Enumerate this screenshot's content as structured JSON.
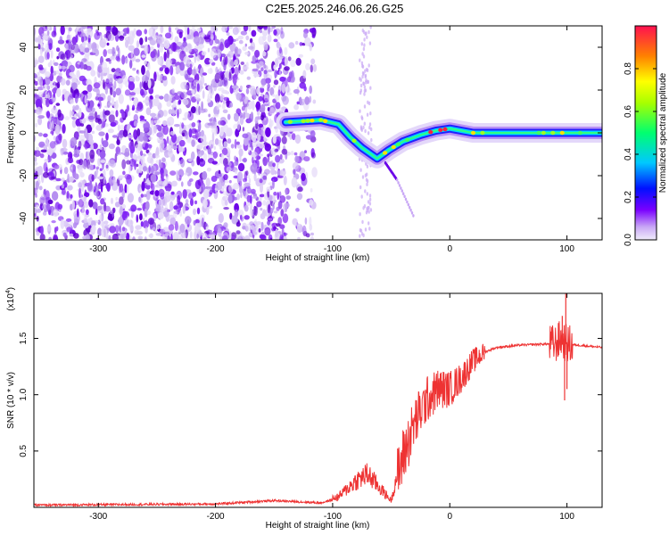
{
  "title": "C2E5.2025.246.06.26.G25",
  "chart_data": [
    {
      "type": "heatmap",
      "xlabel": "Height of straight line (km)",
      "ylabel": "Frequency (Hz)",
      "xlim": [
        -355,
        130
      ],
      "ylim": [
        -50,
        50
      ],
      "x_ticks": [
        -300,
        -200,
        -100,
        0,
        100
      ],
      "y_ticks": [
        -40,
        -20,
        0,
        20,
        40
      ],
      "colorbar": {
        "label": "Normalized spectral amplitude",
        "range": [
          0,
          1
        ],
        "ticks": [
          0,
          0.2,
          0.4,
          0.6,
          0.8
        ],
        "tick_labels": [
          "0.0",
          "0.2",
          "0.4",
          "0.6",
          "0.8"
        ],
        "colormap": [
          "#e8e0f8",
          "#7a00ff",
          "#0000ff",
          "#00c8ff",
          "#00ff60",
          "#ffff00",
          "#ff8000",
          "#ff0040"
        ]
      },
      "noise_region_x": [
        -355,
        -115
      ],
      "track": [
        {
          "x": -140,
          "f": 5
        },
        {
          "x": -110,
          "f": 6
        },
        {
          "x": -95,
          "f": 4
        },
        {
          "x": -85,
          "f": -2
        },
        {
          "x": -75,
          "f": -7
        },
        {
          "x": -62,
          "f": -12
        },
        {
          "x": -52,
          "f": -8
        },
        {
          "x": -40,
          "f": -4
        },
        {
          "x": -25,
          "f": -1
        },
        {
          "x": -12,
          "f": 1
        },
        {
          "x": 0,
          "f": 2
        },
        {
          "x": 20,
          "f": 0
        },
        {
          "x": 60,
          "f": 0
        },
        {
          "x": 100,
          "f": 0
        },
        {
          "x": 130,
          "f": 0
        }
      ],
      "secondary_trace": [
        {
          "x": -55,
          "f": -14
        },
        {
          "x": -45,
          "f": -22
        },
        {
          "x": -30,
          "f": -40
        }
      ]
    },
    {
      "type": "line",
      "xlabel": "Height of straight line (km)",
      "ylabel": "SNR (10 * v/v)",
      "exponent_label": "(x10",
      "exponent_sup": "4",
      "exponent_close": ")",
      "xlim": [
        -355,
        130
      ],
      "ylim": [
        0,
        1.9
      ],
      "x_ticks": [
        -300,
        -200,
        -100,
        0,
        100
      ],
      "y_ticks": [
        0.5,
        1.0,
        1.5
      ],
      "y_tick_labels": [
        "0.5",
        "1.0",
        "1.5"
      ],
      "color": "#ee3333",
      "envelope": [
        {
          "x": -355,
          "y": 0.02
        },
        {
          "x": -200,
          "y": 0.03
        },
        {
          "x": -150,
          "y": 0.06
        },
        {
          "x": -110,
          "y": 0.04
        },
        {
          "x": -95,
          "y": 0.08
        },
        {
          "x": -80,
          "y": 0.2
        },
        {
          "x": -70,
          "y": 0.25
        },
        {
          "x": -60,
          "y": 0.15
        },
        {
          "x": -50,
          "y": 0.05
        },
        {
          "x": -40,
          "y": 0.45
        },
        {
          "x": -30,
          "y": 0.75
        },
        {
          "x": -20,
          "y": 0.95
        },
        {
          "x": -10,
          "y": 1.05
        },
        {
          "x": 0,
          "y": 1.05
        },
        {
          "x": 10,
          "y": 1.15
        },
        {
          "x": 20,
          "y": 1.3
        },
        {
          "x": 30,
          "y": 1.38
        },
        {
          "x": 40,
          "y": 1.42
        },
        {
          "x": 60,
          "y": 1.44
        },
        {
          "x": 80,
          "y": 1.45
        },
        {
          "x": 90,
          "y": 1.45
        },
        {
          "x": 95,
          "y": 1.5
        },
        {
          "x": 100,
          "y": 1.45
        },
        {
          "x": 130,
          "y": 1.42
        }
      ],
      "spikes": [
        {
          "x": 99,
          "y": 1.92
        },
        {
          "x": 98,
          "y": 0.95
        },
        {
          "x": 96,
          "y": 1.7
        },
        {
          "x": 100,
          "y": 1.05
        }
      ]
    }
  ]
}
